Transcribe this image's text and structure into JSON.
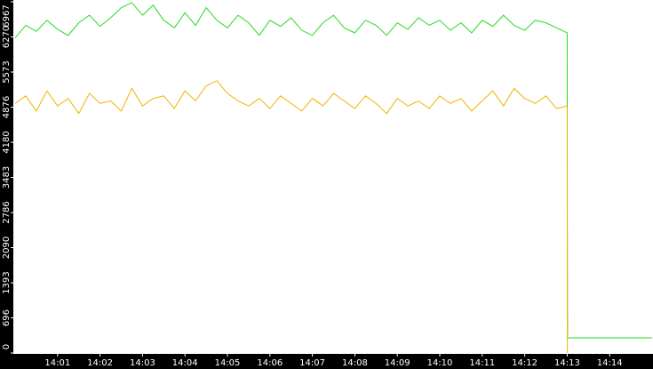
{
  "chart_data": {
    "type": "line",
    "x": [
      0,
      0.25,
      0.5,
      0.75,
      1,
      1.25,
      1.5,
      1.75,
      2,
      2.25,
      2.5,
      2.75,
      3,
      3.25,
      3.5,
      3.75,
      4,
      4.25,
      4.5,
      4.75,
      5,
      5.25,
      5.5,
      5.75,
      6,
      6.25,
      6.5,
      6.75,
      7,
      7.25,
      7.5,
      7.75,
      8,
      8.25,
      8.5,
      8.75,
      9,
      9.25,
      9.5,
      9.75,
      10,
      10.25,
      10.5,
      10.75,
      11,
      11.25,
      11.5,
      11.75,
      12,
      12.25,
      12.5,
      12.75,
      13,
      13.005,
      13.01,
      15
    ],
    "series": [
      {
        "color": "#22dd22",
        "values": [
          6250,
          6500,
          6380,
          6600,
          6420,
          6300,
          6550,
          6700,
          6480,
          6650,
          6850,
          6950,
          6700,
          6900,
          6600,
          6450,
          6750,
          6500,
          6850,
          6600,
          6450,
          6700,
          6550,
          6300,
          6600,
          6480,
          6650,
          6400,
          6300,
          6550,
          6700,
          6450,
          6350,
          6600,
          6500,
          6300,
          6550,
          6420,
          6650,
          6500,
          6600,
          6400,
          6550,
          6350,
          6600,
          6480,
          6700,
          6500,
          6400,
          6600,
          6550,
          6450,
          6350,
          2300,
          300,
          300
        ]
      },
      {
        "color": "#f0b400",
        "values": [
          4950,
          5100,
          4800,
          5200,
          4900,
          5050,
          4750,
          5150,
          4950,
          5000,
          4800,
          5250,
          4900,
          5050,
          5100,
          4850,
          5200,
          5000,
          5300,
          5400,
          5150,
          5000,
          4900,
          5050,
          4850,
          5100,
          4950,
          4800,
          5050,
          4900,
          5150,
          5000,
          4850,
          5100,
          4950,
          4750,
          5050,
          4900,
          5000,
          4850,
          5100,
          4950,
          5050,
          4800,
          5000,
          5200,
          4900,
          5250,
          5050,
          4950,
          5100,
          4850,
          4900,
          0,
          null,
          null
        ]
      }
    ],
    "xlim": [
      0,
      15
    ],
    "xticks": [
      {
        "value": 1,
        "label": "14:01"
      },
      {
        "value": 2,
        "label": "14:02"
      },
      {
        "value": 3,
        "label": "14:03"
      },
      {
        "value": 4,
        "label": "14:04"
      },
      {
        "value": 5,
        "label": "14:05"
      },
      {
        "value": 6,
        "label": "14:06"
      },
      {
        "value": 7,
        "label": "14:07"
      },
      {
        "value": 8,
        "label": "14:08"
      },
      {
        "value": 9,
        "label": "14:09"
      },
      {
        "value": 10,
        "label": "14:10"
      },
      {
        "value": 11,
        "label": "14:11"
      },
      {
        "value": 12,
        "label": "14:12"
      },
      {
        "value": 13,
        "label": "14:13"
      },
      {
        "value": 14,
        "label": "14:14"
      }
    ],
    "ylim": [
      0,
      6967
    ],
    "yticks": [
      0,
      696,
      1393,
      2090,
      2786,
      3483,
      4180,
      4876,
      5573,
      6270,
      6967
    ]
  }
}
